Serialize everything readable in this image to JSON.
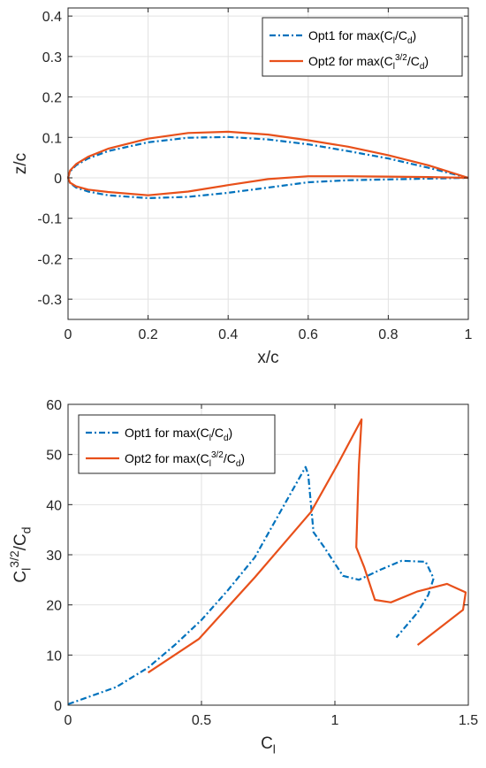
{
  "chart_data": [
    {
      "type": "line",
      "xlabel": "x/c",
      "ylabel": "z/c",
      "xlim": [
        0,
        1
      ],
      "ylim": [
        -0.35,
        0.42
      ],
      "xticks": [
        "0",
        "0.2",
        "0.4",
        "0.6",
        "0.8",
        "1"
      ],
      "xtick_values": [
        0,
        0.2,
        0.4,
        0.6,
        0.8,
        1
      ],
      "yticks": [
        "-0.3",
        "-0.2",
        "-0.1",
        "0",
        "0.1",
        "0.2",
        "0.3",
        "0.4"
      ],
      "ytick_values": [
        -0.3,
        -0.2,
        -0.1,
        0,
        0.1,
        0.2,
        0.3,
        0.4
      ],
      "grid": true,
      "legend_position": "top-right",
      "series": [
        {
          "name": "Opt1 for max(C_l/C_d)",
          "color": "#0072BD",
          "style": "dashdot",
          "x": [
            1.0,
            0.9,
            0.8,
            0.7,
            0.6,
            0.5,
            0.4,
            0.3,
            0.2,
            0.1,
            0.05,
            0.02,
            0.005,
            0.0,
            0.005,
            0.02,
            0.05,
            0.1,
            0.2,
            0.3,
            0.4,
            0.5,
            0.6,
            0.7,
            0.8,
            0.9,
            1.0
          ],
          "y": [
            0.0,
            0.025,
            0.048,
            0.066,
            0.083,
            0.095,
            0.101,
            0.099,
            0.088,
            0.066,
            0.048,
            0.031,
            0.016,
            0.0,
            -0.013,
            -0.024,
            -0.034,
            -0.043,
            -0.05,
            -0.047,
            -0.037,
            -0.024,
            -0.011,
            -0.006,
            -0.004,
            -0.002,
            0.0
          ]
        },
        {
          "name": "Opt2 for max(C_l^3/2/C_d)",
          "color": "#E8501A",
          "style": "solid",
          "x": [
            1.0,
            0.9,
            0.8,
            0.7,
            0.6,
            0.5,
            0.4,
            0.3,
            0.2,
            0.1,
            0.05,
            0.02,
            0.005,
            0.0,
            0.005,
            0.02,
            0.05,
            0.1,
            0.2,
            0.3,
            0.4,
            0.5,
            0.6,
            0.7,
            0.8,
            0.9,
            1.0
          ],
          "y": [
            0.0,
            0.031,
            0.056,
            0.077,
            0.093,
            0.107,
            0.114,
            0.111,
            0.097,
            0.072,
            0.052,
            0.034,
            0.018,
            0.0,
            -0.012,
            -0.021,
            -0.029,
            -0.035,
            -0.043,
            -0.034,
            -0.018,
            -0.003,
            0.004,
            0.004,
            0.003,
            0.002,
            0.0
          ]
        }
      ]
    },
    {
      "type": "line",
      "xlabel": "C_l",
      "ylabel": "C_l^3/2/C_d",
      "xlim": [
        0,
        1.5
      ],
      "ylim": [
        0,
        60
      ],
      "xticks": [
        "0",
        "0.5",
        "1",
        "1.5"
      ],
      "xtick_values": [
        0,
        0.5,
        1,
        1.5
      ],
      "yticks": [
        "0",
        "10",
        "20",
        "30",
        "40",
        "50",
        "60"
      ],
      "ytick_values": [
        0,
        10,
        20,
        30,
        40,
        50,
        60
      ],
      "grid": true,
      "legend_position": "top-left",
      "series": [
        {
          "name": "Opt1 for max(C_l/C_d)",
          "color": "#0072BD",
          "style": "dashdot",
          "x": [
            0.0,
            0.18,
            0.3,
            0.4,
            0.5,
            0.6,
            0.7,
            0.8,
            0.89,
            0.9,
            0.92,
            0.96,
            1.03,
            1.09,
            1.17,
            1.25,
            1.34,
            1.37,
            1.35,
            1.31,
            1.23
          ],
          "y": [
            0.2,
            3.6,
            7.5,
            12.0,
            17.0,
            23.0,
            29.5,
            39.0,
            47.5,
            46.0,
            34.5,
            31.5,
            25.8,
            25.0,
            27.0,
            28.8,
            28.6,
            25.3,
            22.0,
            18.5,
            13.5
          ]
        },
        {
          "name": "Opt2 for max(C_l^3/2/C_d)",
          "color": "#E8501A",
          "style": "solid",
          "x": [
            0.3,
            0.49,
            0.7,
            0.91,
            1.01,
            1.1,
            1.09,
            1.085,
            1.08,
            1.11,
            1.15,
            1.21,
            1.31,
            1.42,
            1.49,
            1.48,
            1.31
          ],
          "y": [
            6.5,
            13.2,
            25.5,
            38.5,
            48.0,
            57.0,
            48.0,
            40.0,
            31.5,
            27.5,
            21.0,
            20.5,
            22.7,
            24.2,
            22.5,
            19.0,
            12.0
          ]
        }
      ]
    }
  ]
}
